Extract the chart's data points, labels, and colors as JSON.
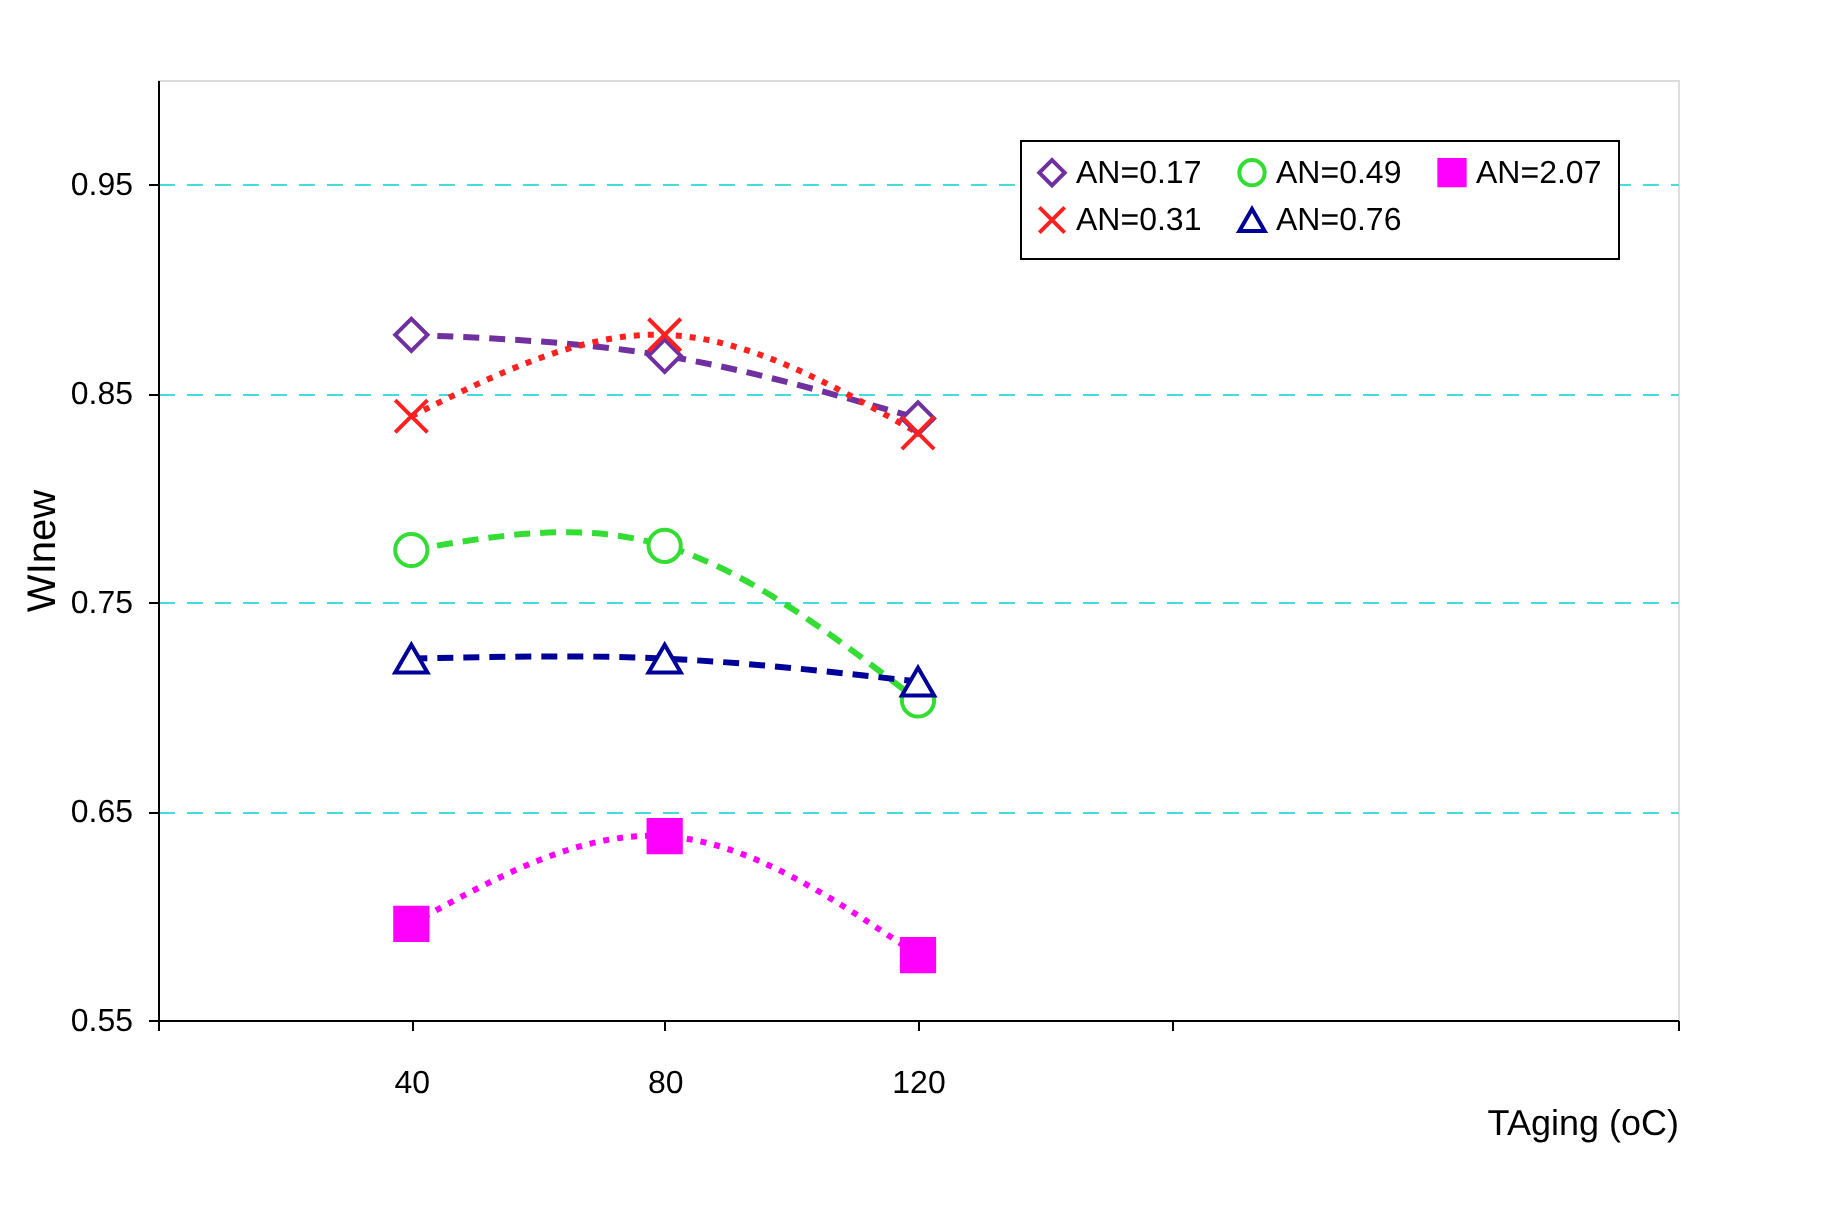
{
  "chart_data": {
    "type": "line",
    "x": [
      40,
      80,
      120
    ],
    "xlim": [
      0,
      240
    ],
    "xticks": [
      {
        "value": 0,
        "label": null
      },
      40,
      80,
      120,
      {
        "value": 160,
        "label": null
      },
      {
        "value": 240,
        "label": null
      }
    ],
    "ylim": [
      0.55,
      1.0
    ],
    "yticks": [
      0.55,
      0.65,
      0.75,
      0.85,
      0.95
    ],
    "xlabel": "TAging (oC)",
    "ylabel": "WInew",
    "grid": "y",
    "legend": "top right",
    "series": [
      {
        "name": "AN=0.17",
        "color": "#7030a0",
        "marker": "diamond",
        "line_style": "dashed",
        "values": [
          0.878,
          0.868,
          0.838
        ]
      },
      {
        "name": "AN=0.31",
        "color": "#ff2020",
        "marker": "cross",
        "line_style": "dotted",
        "values": [
          0.839,
          0.878,
          0.831
        ]
      },
      {
        "name": "AN=0.49",
        "color": "#33dd33",
        "marker": "circle",
        "line_style": "dashed",
        "values": [
          0.775,
          0.777,
          0.703
        ]
      },
      {
        "name": "AN=0.76",
        "color": "#000099",
        "marker": "triangle",
        "line_style": "dashed",
        "values": [
          0.723,
          0.723,
          0.712
        ]
      },
      {
        "name": "AN=2.07",
        "color": "#ff00ff",
        "marker": "square",
        "line_style": "dotted",
        "values": [
          0.596,
          0.638,
          0.581
        ]
      }
    ]
  }
}
